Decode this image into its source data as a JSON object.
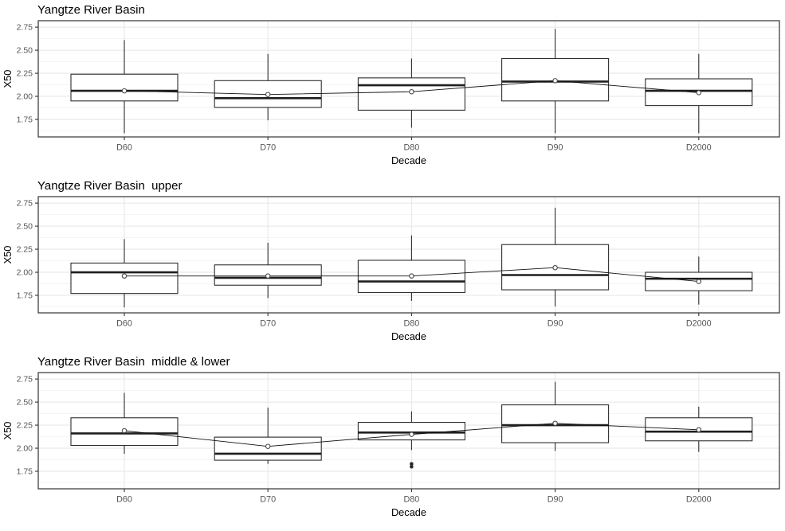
{
  "figure": {
    "background": "#ffffff",
    "kind": "boxplot-grid",
    "rows": 3
  },
  "style": {
    "panel_border": "#333333",
    "grid_major": "#e6e6e6",
    "grid_minor": "#f2f2f2",
    "box_stroke": "#2e2e2e",
    "box_fill": "#ffffff",
    "median_color": "#1f1f1f",
    "whisker_color": "#2e2e2e",
    "mean_line_color": "#111111",
    "mean_point_stroke": "#4a4a4a",
    "mean_point_fill": "#ffffff",
    "outlier_color": "#2a2a2a",
    "tick_color": "#333333",
    "tick_label_color": "#555555",
    "axis_title_color": "#000000",
    "title_color": "#000000"
  },
  "chart_data": [
    {
      "type": "box",
      "title": "Yangtze River Basin",
      "xlabel": "Decade",
      "ylabel": "X50",
      "categories": [
        "D60",
        "D70",
        "D80",
        "D90",
        "D2000"
      ],
      "y_ticks": [
        1.75,
        2.0,
        2.25,
        2.5,
        2.75
      ],
      "y_tick_labels": [
        "1.75",
        "2.00",
        "2.25",
        "2.50",
        "2.75"
      ],
      "ylim": [
        1.56,
        2.82
      ],
      "grid": "major-and-minor",
      "legend": "none",
      "boxes": [
        {
          "category": "D60",
          "whisker_low": 1.6,
          "q1": 1.95,
          "median": 2.06,
          "q3": 2.24,
          "whisker_high": 2.61,
          "mean": 2.06,
          "outliers": []
        },
        {
          "category": "D70",
          "whisker_low": 1.74,
          "q1": 1.88,
          "median": 1.98,
          "q3": 2.17,
          "whisker_high": 2.46,
          "mean": 2.02,
          "outliers": []
        },
        {
          "category": "D80",
          "whisker_low": 1.66,
          "q1": 1.85,
          "median": 2.12,
          "q3": 2.2,
          "whisker_high": 2.41,
          "mean": 2.05,
          "outliers": []
        },
        {
          "category": "D90",
          "whisker_low": 1.6,
          "q1": 1.95,
          "median": 2.16,
          "q3": 2.41,
          "whisker_high": 2.73,
          "mean": 2.17,
          "outliers": []
        },
        {
          "category": "D2000",
          "whisker_low": 1.6,
          "q1": 1.9,
          "median": 2.06,
          "q3": 2.19,
          "whisker_high": 2.46,
          "mean": 2.04,
          "outliers": []
        }
      ],
      "mean_series": [
        2.06,
        2.02,
        2.05,
        2.17,
        2.04
      ]
    },
    {
      "type": "box",
      "title": "Yangtze River Basin  upper",
      "xlabel": "Decade",
      "ylabel": "X50",
      "categories": [
        "D60",
        "D70",
        "D80",
        "D90",
        "D2000"
      ],
      "y_ticks": [
        1.75,
        2.0,
        2.25,
        2.5,
        2.75
      ],
      "y_tick_labels": [
        "1.75",
        "2.00",
        "2.25",
        "2.50",
        "2.75"
      ],
      "ylim": [
        1.56,
        2.82
      ],
      "grid": "major-and-minor",
      "legend": "none",
      "boxes": [
        {
          "category": "D60",
          "whisker_low": 1.62,
          "q1": 1.77,
          "median": 2.0,
          "q3": 2.1,
          "whisker_high": 2.36,
          "mean": 1.96,
          "outliers": []
        },
        {
          "category": "D70",
          "whisker_low": 1.72,
          "q1": 1.86,
          "median": 1.94,
          "q3": 2.08,
          "whisker_high": 2.32,
          "mean": 1.96,
          "outliers": []
        },
        {
          "category": "D80",
          "whisker_low": 1.69,
          "q1": 1.78,
          "median": 1.9,
          "q3": 2.13,
          "whisker_high": 2.4,
          "mean": 1.96,
          "outliers": []
        },
        {
          "category": "D90",
          "whisker_low": 1.63,
          "q1": 1.81,
          "median": 1.97,
          "q3": 2.3,
          "whisker_high": 2.7,
          "mean": 2.05,
          "outliers": []
        },
        {
          "category": "D2000",
          "whisker_low": 1.65,
          "q1": 1.8,
          "median": 1.93,
          "q3": 2.0,
          "whisker_high": 2.17,
          "mean": 1.9,
          "outliers": []
        }
      ],
      "mean_series": [
        1.96,
        1.96,
        1.96,
        2.05,
        1.9
      ]
    },
    {
      "type": "box",
      "title": "Yangtze River Basin  middle & lower",
      "xlabel": "Decade",
      "ylabel": "X50",
      "categories": [
        "D60",
        "D70",
        "D80",
        "D90",
        "D2000"
      ],
      "y_ticks": [
        1.75,
        2.0,
        2.25,
        2.5,
        2.75
      ],
      "y_tick_labels": [
        "1.75",
        "2.00",
        "2.25",
        "2.50",
        "2.75"
      ],
      "ylim": [
        1.56,
        2.82
      ],
      "grid": "major-and-minor",
      "legend": "none",
      "boxes": [
        {
          "category": "D60",
          "whisker_low": 1.94,
          "q1": 2.03,
          "median": 2.16,
          "q3": 2.33,
          "whisker_high": 2.6,
          "mean": 2.19,
          "outliers": []
        },
        {
          "category": "D70",
          "whisker_low": 1.83,
          "q1": 1.87,
          "median": 1.94,
          "q3": 2.12,
          "whisker_high": 2.44,
          "mean": 2.02,
          "outliers": []
        },
        {
          "category": "D80",
          "whisker_low": 1.98,
          "q1": 2.09,
          "median": 2.17,
          "q3": 2.28,
          "whisker_high": 2.4,
          "mean": 2.15,
          "outliers": [
            1.83,
            1.8
          ]
        },
        {
          "category": "D90",
          "whisker_low": 1.97,
          "q1": 2.06,
          "median": 2.25,
          "q3": 2.47,
          "whisker_high": 2.72,
          "mean": 2.27,
          "outliers": []
        },
        {
          "category": "D2000",
          "whisker_low": 1.96,
          "q1": 2.08,
          "median": 2.18,
          "q3": 2.33,
          "whisker_high": 2.45,
          "mean": 2.2,
          "outliers": []
        }
      ],
      "mean_series": [
        2.19,
        2.02,
        2.15,
        2.27,
        2.2
      ]
    }
  ]
}
